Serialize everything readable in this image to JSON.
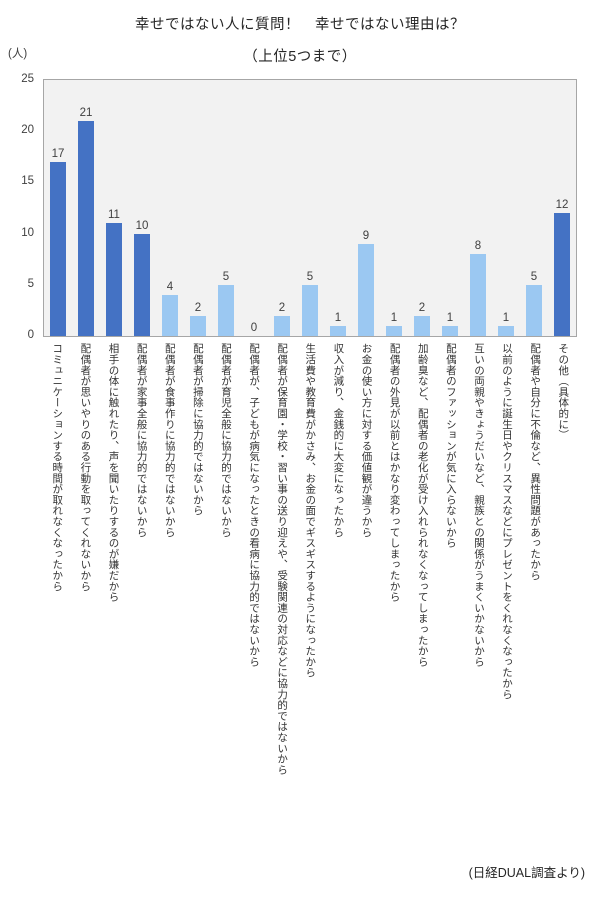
{
  "chart_data": {
    "type": "bar",
    "title": "幸せではない人に質問！　幸せではない理由は？",
    "subtitle": "（上位5つまで）",
    "y_unit": "(人)",
    "source": "(日経DUAL調査より)",
    "categories": [
      "コミュニケーションする時間が取れなくなったから",
      "配偶者が思いやりのある行動を取ってくれないから",
      "相手の体に触れたり、声を聞いたりするのが嫌だから",
      "配偶者が家事全般に協力的ではないから",
      "配偶者が食事作りに協力的ではないから",
      "配偶者が掃除に協力的ではないから",
      "配偶者が育児全般に協力的ではないから",
      "配偶者が、子どもが病気になったときの看病に協力的ではないから",
      "配偶者が保育園・学校・習い事の送り迎えや、受験関連の対応などに協力的ではないから",
      "生活費や教育費がかさみ、お金の面でギスギスするようになったから",
      "収入が減り、金銭的に大変になったから",
      "お金の使い方に対する価値観が違うから",
      "配偶者の外見が以前とはかなり変わってしまったから",
      "加齢臭など、配偶者の老化が受け入れられなくなってしまったから",
      "配偶者のファッションが気に入らないから",
      "互いの両親やきょうだいなど、親族との関係がうまくいかないから",
      "以前のように誕生日やクリスマスなどにプレゼントをくれなくなったから",
      "配偶者や自分に不倫など、異性問題があったから",
      "その他（具体的に）"
    ],
    "values": [
      17,
      21,
      11,
      10,
      4,
      2,
      5,
      0,
      2,
      5,
      1,
      9,
      1,
      2,
      1,
      8,
      1,
      5,
      12
    ],
    "bar_colors": [
      "dark",
      "dark",
      "dark",
      "dark",
      "light",
      "light",
      "light",
      "light",
      "light",
      "light",
      "light",
      "light",
      "light",
      "light",
      "light",
      "light",
      "light",
      "light",
      "dark"
    ],
    "palette": {
      "dark": "#4472C4",
      "light": "#9BC8F2"
    },
    "plot_background": "#F2F2F2",
    "plot_border": "#A6A6A6",
    "xlabel": "",
    "ylabel": "(人)",
    "ylim": [
      0,
      25
    ],
    "yticks": [
      0,
      5,
      10,
      15,
      20,
      25
    ],
    "grid": false,
    "legend_position": "none"
  }
}
